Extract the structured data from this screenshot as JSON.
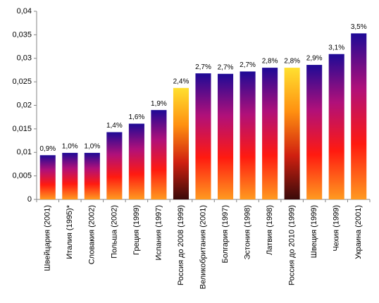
{
  "chart_data": {
    "type": "bar",
    "categories": [
      "Швейцария (2001)",
      "Италия (1995)*",
      "Словакия (2002)",
      "Польша (2002)",
      "Греция (1999)",
      "Испания (1997)",
      "Россия до 2008 (1999)",
      "Великобритания (2001)",
      "Болгария (1997)",
      "Эстония (1998)",
      "Латвия (1998)",
      "Россия до 2010 (1999)",
      "Швеция (1999)",
      "Чехия (1999)",
      "Украина (2001)"
    ],
    "values": [
      0.0094,
      0.0099,
      0.0099,
      0.0143,
      0.0161,
      0.019,
      0.0237,
      0.0268,
      0.0267,
      0.0272,
      0.028,
      0.028,
      0.0286,
      0.0309,
      0.0353
    ],
    "value_labels": [
      "0,9%",
      "1,0%",
      "1,0%",
      "1,4%",
      "1,6%",
      "1,9%",
      "2,4%",
      "2,7%",
      "2,7%",
      "2,7%",
      "2,8%",
      "2,8%",
      "2,9%",
      "3,1%",
      "3,5%"
    ],
    "bar_styles": [
      "default",
      "default",
      "default",
      "default",
      "default",
      "default",
      "highlight",
      "default",
      "default",
      "default",
      "default",
      "highlight",
      "default",
      "default",
      "default"
    ],
    "gradients": {
      "default": [
        "#1e0a96",
        "#b0107a",
        "#ff1a10",
        "#ff9a20"
      ],
      "highlight": [
        "#ffe030",
        "#ff9010",
        "#d02010",
        "#3a0a0a"
      ]
    },
    "ylim": [
      0,
      0.04
    ],
    "yticks": [
      0,
      {
        "value": 0.005,
        "label": "0,005"
      },
      {
        "value": 0.01,
        "label": "0,01"
      },
      {
        "value": 0.015,
        "label": "0,015"
      },
      {
        "value": 0.02,
        "label": "0,02"
      },
      {
        "value": 0.025,
        "label": "0,025"
      },
      {
        "value": 0.03,
        "label": "0,03"
      },
      {
        "value": 0.035,
        "label": "0,035"
      },
      {
        "value": 0.04,
        "label": "0,04"
      }
    ],
    "grid": false
  }
}
